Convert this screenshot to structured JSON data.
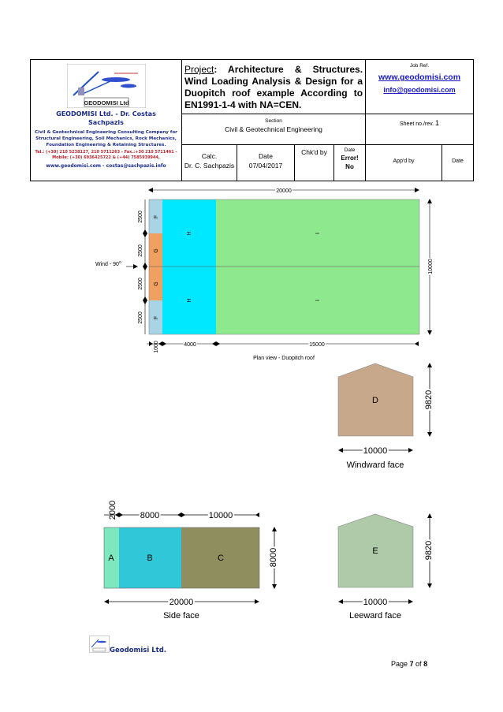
{
  "header": {
    "company_name_l1": "GEODOMISI Ltd. - Dr. Costas",
    "company_name_l2": "Sachpazis",
    "logo_text": "GEODOMISI Ltd",
    "company_desc_l1": "Civil & Geotechnical Engineering Consulting Company for",
    "company_desc_l2": "Structural Engineering, Soil Mechanics, Rock Mechanics,",
    "company_desc_l3": "Foundation Engineering & Retaining Structures.",
    "tel_l1": "Tel.: (+30) 210 5238127, 210 5711263 - Fax.:+30 210 5711461 -",
    "tel_l2": "Mobile: (+30) 6936425722 & (+44) 7585939944,",
    "web_email": "www.geodomisi.com - costas@sachpazis.info",
    "project_label": "Project",
    "project_text": ": Architecture & Structures. Wind Loading Analysis & Design for a Duopitch roof example According to EN1991-1-4 with NA=CEN.",
    "job_ref_label": "Job Ref.",
    "job_link1": "www.geodomisi.com",
    "job_link2": "info@geodomisi.com",
    "section_label": "Section",
    "section_value": "Civil & Geotechnical Engineering",
    "sheet_label": "Sheet no./rev.",
    "sheet_value": "1",
    "calc_label": "Calc.",
    "calc_value": "Dr. C. Sachpazis",
    "date_label": "Date",
    "date_value": "07/04/2017",
    "chkd_label": "Chk'd by",
    "date2_label": "Date",
    "date2_value_l1": "Error!",
    "date2_value_l2": "No",
    "appd_label": "App'd by",
    "date3_label": "Date"
  },
  "plan": {
    "width_dim": "20000",
    "depth_dim": "10000",
    "zone_dims": [
      "2500",
      "2500",
      "2500",
      "2500"
    ],
    "dim_1000": "1000",
    "dim_4000": "4000",
    "dim_15000": "15000",
    "wind_label": "Wind - 90",
    "wind_deg": "o",
    "zones": {
      "F": "F",
      "G": "G",
      "H": "H",
      "I": "I"
    },
    "caption": "Plan view - Duopitch roof",
    "colors": {
      "F": "#a8d4e6",
      "G": "#f0a060",
      "H": "#00e8ff",
      "I": "#8ee88e"
    }
  },
  "windward": {
    "zone": "D",
    "width": "10000",
    "height": "9820",
    "caption": "Windward face",
    "color": "#c8a88a"
  },
  "side": {
    "zones": [
      "A",
      "B",
      "C"
    ],
    "dim_a": "2000",
    "dim_b": "8000",
    "dim_c": "10000",
    "width": "20000",
    "height": "8000",
    "caption": "Side face",
    "colors": [
      "#7de8c0",
      "#30c8d8",
      "#8e8e5e"
    ]
  },
  "leeward": {
    "zone": "E",
    "width": "10000",
    "height": "9820",
    "caption": "Leeward face",
    "color": "#aecaa8"
  },
  "footer": {
    "name": "Geodomisi Ltd.",
    "page_label": "Page ",
    "page_num": "7",
    "page_of": " of ",
    "page_total": "8"
  }
}
